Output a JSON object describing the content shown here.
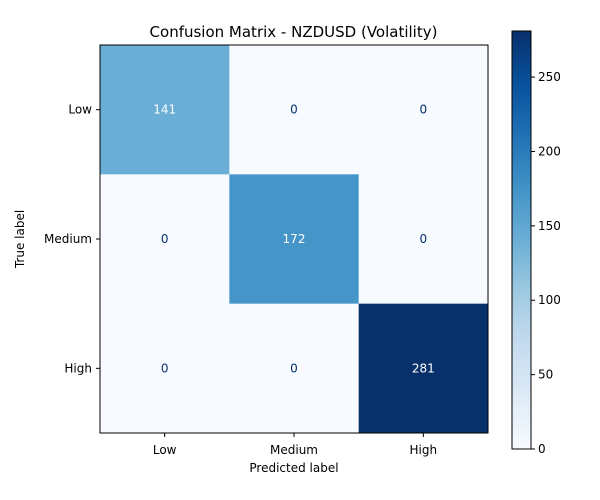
{
  "chart_data": {
    "type": "heatmap",
    "title": "Confusion Matrix - NZDUSD (Volatility)",
    "xlabel": "Predicted label",
    "ylabel": "True label",
    "x_categories": [
      "Low",
      "Medium",
      "High"
    ],
    "y_categories": [
      "Low",
      "Medium",
      "High"
    ],
    "values": [
      [
        141,
        0,
        0
      ],
      [
        0,
        172,
        0
      ],
      [
        0,
        0,
        281
      ]
    ],
    "colormap": "Blues",
    "colorbar": {
      "range": [
        0,
        281
      ],
      "ticks": [
        0,
        50,
        100,
        150,
        200,
        250
      ],
      "tick_labels": [
        "0",
        "50",
        "100",
        "150",
        "200",
        "250"
      ]
    },
    "grid": false,
    "text_color_light": "#ffffff",
    "text_color_dark": "#08306b"
  }
}
